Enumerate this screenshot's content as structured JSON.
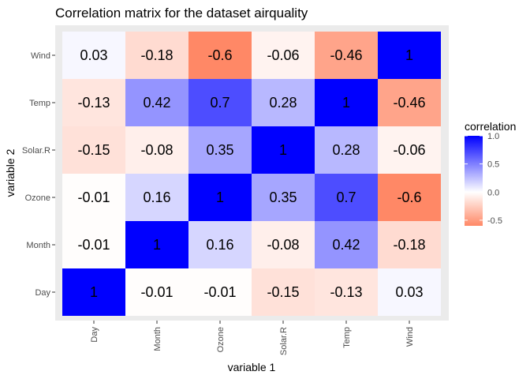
{
  "chart_data": {
    "type": "heatmap",
    "title": "Correlation matrix for the dataset airquality",
    "xlabel": "variable 1",
    "ylabel": "variable 2",
    "x_categories": [
      "Day",
      "Month",
      "Ozone",
      "Solar.R",
      "Temp",
      "Wind"
    ],
    "y_categories": [
      "Day",
      "Month",
      "Ozone",
      "Solar.R",
      "Temp",
      "Wind"
    ],
    "values": [
      [
        1,
        -0.01,
        -0.01,
        -0.15,
        -0.13,
        0.03
      ],
      [
        -0.01,
        1,
        0.16,
        -0.08,
        0.42,
        -0.18
      ],
      [
        -0.01,
        0.16,
        1,
        0.35,
        0.7,
        -0.6
      ],
      [
        -0.15,
        -0.08,
        0.35,
        1,
        0.28,
        -0.06
      ],
      [
        -0.13,
        0.42,
        0.7,
        0.28,
        1,
        -0.46
      ],
      [
        0.03,
        -0.18,
        -0.6,
        -0.06,
        -0.46,
        1
      ]
    ],
    "legend": {
      "title": "correlation",
      "ticks": [
        "1.0",
        "0.5",
        "0.0",
        "-0.5"
      ],
      "tick_values": [
        1.0,
        0.5,
        0.0,
        -0.5
      ],
      "range": [
        -0.6,
        1.0
      ],
      "placement": "right"
    },
    "colors": {
      "low": "#ff8866",
      "mid": "#ffffff",
      "high": "#0000ff",
      "panel_background": "#ebebeb"
    }
  }
}
